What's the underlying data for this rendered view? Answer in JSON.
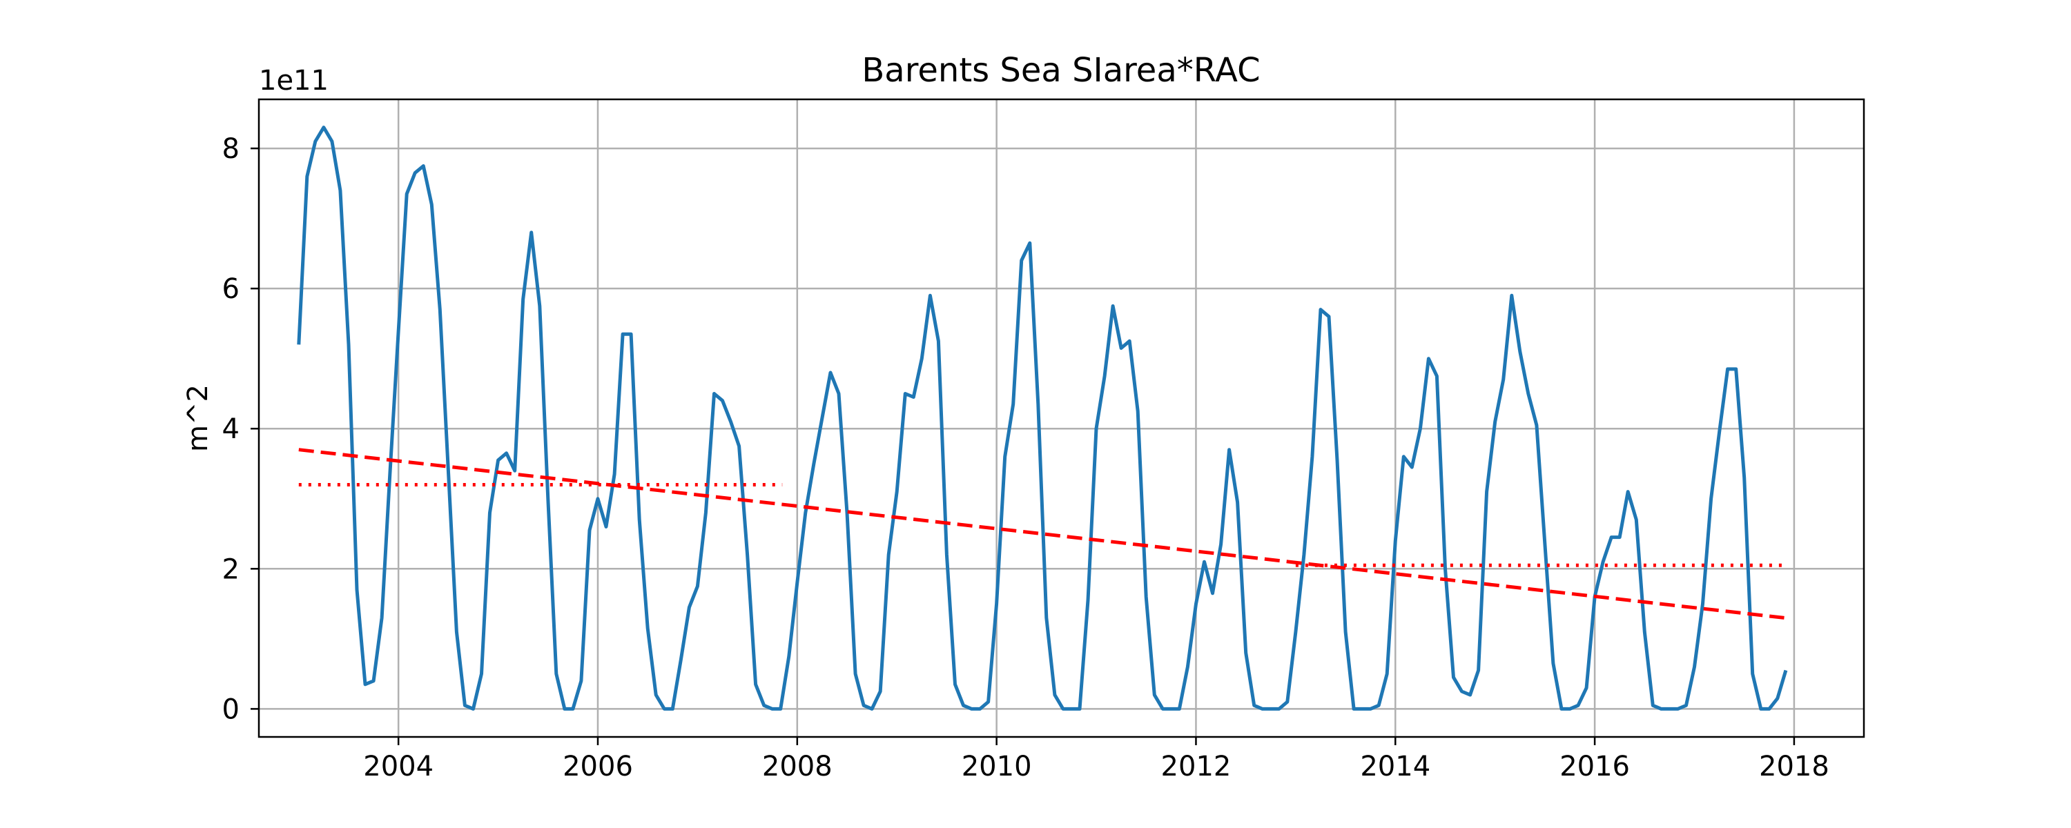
{
  "chart_data": {
    "type": "line",
    "title": "Barents Sea SIarea*RAC",
    "ylabel": "m^2",
    "xlabel": "",
    "y_offset_label": "1e11",
    "xlim": [
      2002.6,
      2018.7
    ],
    "ylim": [
      -0.4,
      8.7
    ],
    "grid": true,
    "x_ticks": [
      2004,
      2006,
      2008,
      2010,
      2012,
      2014,
      2016,
      2018
    ],
    "x_tick_labels": [
      "2004",
      "2006",
      "2008",
      "2010",
      "2012",
      "2014",
      "2016",
      "2018"
    ],
    "y_ticks": [
      0,
      2,
      4,
      6,
      8
    ],
    "y_tick_labels": [
      "0",
      "2",
      "4",
      "6",
      "8"
    ],
    "series": [
      {
        "style": "solid",
        "color": "#1f77b4",
        "x_start": 2003.0,
        "x_step_months": 1,
        "values": [
          5.2,
          7.6,
          8.1,
          8.3,
          8.1,
          7.4,
          5.2,
          1.7,
          0.35,
          0.4,
          1.3,
          3.4,
          5.4,
          7.35,
          7.65,
          7.75,
          7.2,
          5.7,
          3.4,
          1.1,
          0.05,
          0.0,
          0.5,
          2.8,
          3.55,
          3.65,
          3.4,
          5.85,
          6.8,
          5.75,
          3.0,
          0.5,
          0.0,
          0.0,
          0.4,
          2.55,
          3.0,
          2.6,
          3.35,
          5.35,
          5.35,
          2.7,
          1.15,
          0.2,
          0.0,
          0.0,
          0.7,
          1.45,
          1.75,
          2.8,
          4.5,
          4.4,
          4.1,
          3.75,
          2.2,
          0.35,
          0.05,
          0.0,
          0.0,
          0.75,
          1.8,
          2.8,
          3.5,
          4.15,
          4.8,
          4.5,
          2.8,
          0.5,
          0.05,
          0.0,
          0.25,
          2.2,
          3.1,
          4.5,
          4.45,
          5.0,
          5.9,
          5.25,
          2.2,
          0.35,
          0.05,
          0.0,
          0.0,
          0.1,
          1.5,
          3.6,
          4.35,
          6.4,
          6.65,
          4.35,
          1.3,
          0.2,
          0.0,
          0.0,
          0.0,
          1.55,
          4.0,
          4.75,
          5.75,
          5.15,
          5.25,
          4.25,
          1.6,
          0.2,
          0.0,
          0.0,
          0.0,
          0.6,
          1.5,
          2.1,
          1.65,
          2.35,
          3.7,
          2.95,
          0.8,
          0.05,
          0.0,
          0.0,
          0.0,
          0.1,
          1.1,
          2.2,
          3.6,
          5.7,
          5.6,
          3.55,
          1.1,
          0.0,
          0.0,
          0.0,
          0.05,
          0.5,
          2.4,
          3.6,
          3.45,
          4.0,
          5.0,
          4.75,
          2.0,
          0.45,
          0.25,
          0.2,
          0.55,
          3.1,
          4.1,
          4.7,
          5.9,
          5.1,
          4.5,
          4.05,
          2.35,
          0.65,
          0.0,
          0.0,
          0.05,
          0.3,
          1.6,
          2.1,
          2.45,
          2.45,
          3.1,
          2.7,
          1.1,
          0.05,
          0.0,
          0.0,
          0.0,
          0.05,
          0.6,
          1.5,
          3.0,
          3.95,
          4.85,
          4.85,
          3.3,
          0.5,
          0.0,
          0.0,
          0.15,
          0.55
        ]
      },
      {
        "style": "dashed",
        "color": "#ff0000",
        "x": [
          2003.0,
          2017.9
        ],
        "values": [
          3.7,
          1.3
        ]
      },
      {
        "style": "dotted",
        "color": "#ff0000",
        "x": [
          2003.0,
          2007.85
        ],
        "values": [
          3.2,
          3.2
        ]
      },
      {
        "style": "dotted",
        "color": "#ff0000",
        "x": [
          2013.0,
          2017.9
        ],
        "values": [
          2.05,
          2.05
        ]
      }
    ]
  }
}
